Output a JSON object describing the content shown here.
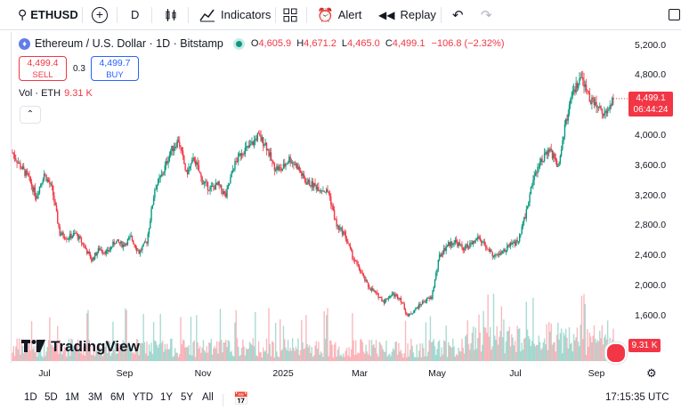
{
  "toolbar": {
    "symbol": "ETHUSD",
    "interval": "D",
    "indicators": "Indicators",
    "alert": "Alert",
    "replay": "Replay"
  },
  "legend": {
    "title": "Ethereum / U.S. Dollar · 1D · Bitstamp",
    "o_label": "O",
    "o": "4,605.9",
    "h_label": "H",
    "h": "4,671.2",
    "l_label": "L",
    "l": "4,465.0",
    "c_label": "C",
    "c": "4,499.1",
    "change": "−106.8 (−2.32%)"
  },
  "trade": {
    "sell_price": "4,499.4",
    "sell_label": "SELL",
    "spread": "0.3",
    "buy_price": "4,499.7",
    "buy_label": "BUY"
  },
  "volume": {
    "label": "Vol · ETH",
    "value": "9.31 K"
  },
  "price_scale": {
    "last": "4,499.1",
    "countdown": "06:44:24",
    "volume_tag": "9.31 K"
  },
  "bottom": {
    "ranges": [
      "1D",
      "5D",
      "1M",
      "3M",
      "6M",
      "YTD",
      "1Y",
      "5Y",
      "All"
    ],
    "clock": "17:15:35 UTC"
  },
  "logo": "TradingView",
  "colors": {
    "up": "#089981",
    "down": "#f23645",
    "accent": "#2962ff"
  },
  "chart_data": {
    "type": "candlestick",
    "title": "Ethereum / U.S. Dollar · 1D · Bitstamp",
    "y_ticks": [
      1600,
      2000,
      2400,
      2800,
      3200,
      3600,
      4000,
      4400,
      4800,
      5200
    ],
    "y_tick_labels": [
      "1,600.0",
      "2,000.0",
      "2,400.0",
      "2,800.0",
      "3,200.0",
      "3,600.0",
      "4,000.0",
      "4,400.0",
      "4,800.0",
      "5,200.0"
    ],
    "x_tick_labels": [
      "Jul",
      "Sep",
      "Nov",
      "2025",
      "Mar",
      "May",
      "Jul",
      "Sep"
    ],
    "ylim": [
      1350,
      5400
    ],
    "last_close": 4499.1,
    "weekly_closes": [
      3780,
      3600,
      3450,
      3200,
      3500,
      3300,
      2700,
      2650,
      2700,
      2550,
      2350,
      2500,
      2450,
      2600,
      2550,
      2650,
      2450,
      2600,
      3300,
      3500,
      3800,
      3950,
      3500,
      3700,
      3400,
      3300,
      3350,
      3200,
      3600,
      3800,
      3850,
      4000,
      3900,
      3600,
      3550,
      3700,
      3600,
      3400,
      3350,
      3300,
      3250,
      2800,
      2700,
      2400,
      2200,
      2000,
      1900,
      1800,
      1900,
      1850,
      1600,
      1700,
      1800,
      1850,
      2400,
      2550,
      2600,
      2500,
      2550,
      2650,
      2500,
      2400,
      2450,
      2550,
      2600,
      3000,
      3500,
      3700,
      3800,
      3600,
      4200,
      4600,
      4750,
      4500,
      4400,
      4300,
      4499
    ]
  }
}
